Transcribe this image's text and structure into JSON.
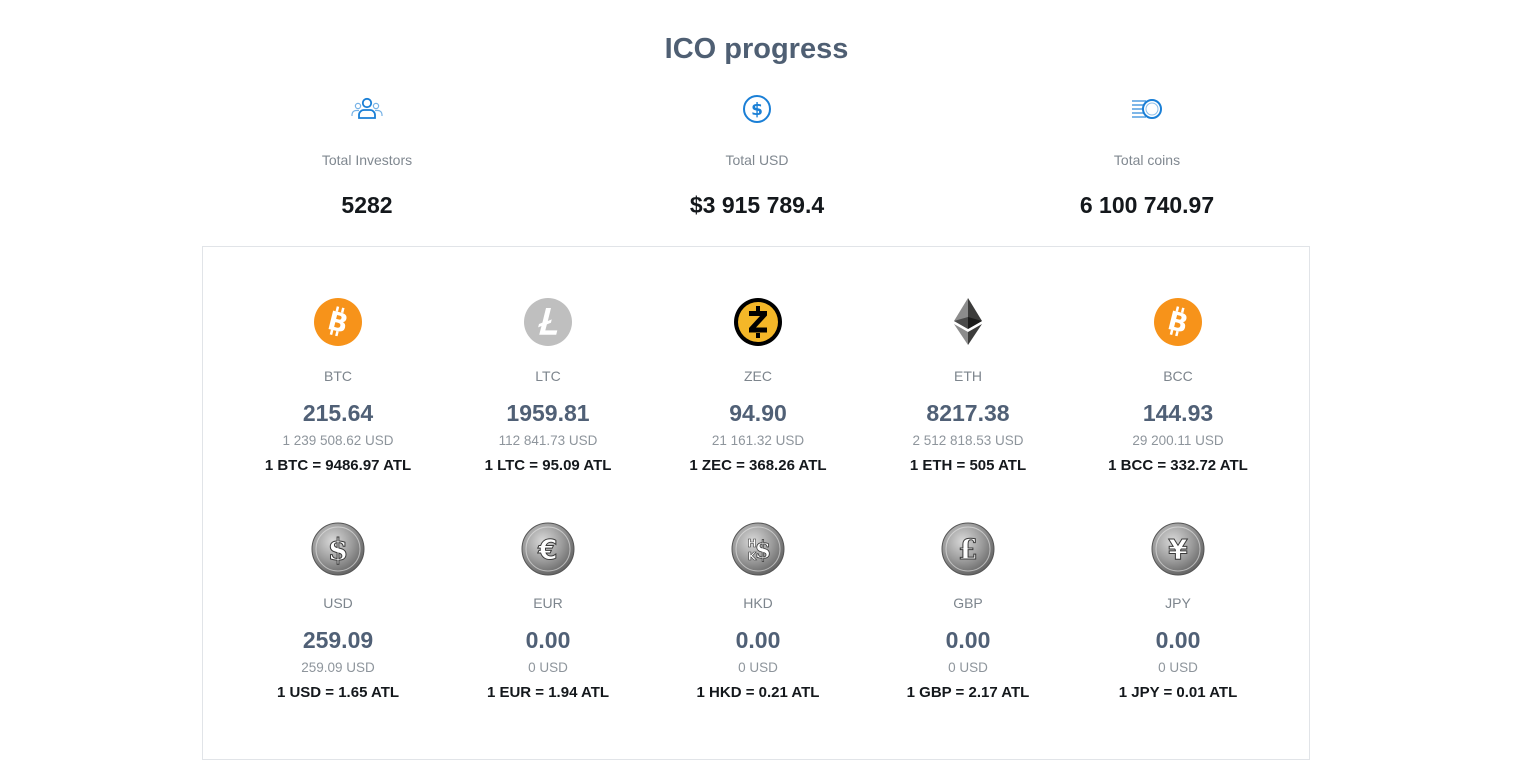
{
  "title": "ICO progress",
  "summary": [
    {
      "icon": "investors-icon",
      "label": "Total Investors",
      "value": "5282"
    },
    {
      "icon": "dollar-circle-icon",
      "label": "Total USD",
      "value": "$3 915 789.4"
    },
    {
      "icon": "coins-icon",
      "label": "Total coins",
      "value": "6 100 740.97"
    }
  ],
  "colors": {
    "accent_blue": "#1a7fd6",
    "btc_orange": "#f7931a",
    "zec_gold": "#f4b728",
    "ltc_gray": "#bfbfbf",
    "title_slate": "#4f5f73",
    "fiat_silver": "#8a8a8a"
  },
  "coins": [
    {
      "icon": "bitcoin-icon",
      "symbol": "BTC",
      "amount": "215.64",
      "usd": "1 239 508.62 USD",
      "rate": "1 BTC = 9486.97 ATL"
    },
    {
      "icon": "litecoin-icon",
      "symbol": "LTC",
      "amount": "1959.81",
      "usd": "112 841.73 USD",
      "rate": "1 LTC = 95.09 ATL"
    },
    {
      "icon": "zcash-icon",
      "symbol": "ZEC",
      "amount": "94.90",
      "usd": "21 161.32 USD",
      "rate": "1 ZEC = 368.26 ATL"
    },
    {
      "icon": "ethereum-icon",
      "symbol": "ETH",
      "amount": "8217.38",
      "usd": "2 512 818.53 USD",
      "rate": "1 ETH = 505 ATL"
    },
    {
      "icon": "bitcoin-cash-icon",
      "symbol": "BCC",
      "amount": "144.93",
      "usd": "29 200.11 USD",
      "rate": "1 BCC = 332.72 ATL"
    },
    {
      "icon": "dollar-coin-icon",
      "symbol": "USD",
      "amount": "259.09",
      "usd": "259.09 USD",
      "rate": "1 USD = 1.65 ATL"
    },
    {
      "icon": "euro-coin-icon",
      "symbol": "EUR",
      "amount": "0.00",
      "usd": "0 USD",
      "rate": "1 EUR = 1.94 ATL"
    },
    {
      "icon": "hkd-coin-icon",
      "symbol": "HKD",
      "amount": "0.00",
      "usd": "0 USD",
      "rate": "1 HKD = 0.21 ATL"
    },
    {
      "icon": "pound-coin-icon",
      "symbol": "GBP",
      "amount": "0.00",
      "usd": "0 USD",
      "rate": "1 GBP = 2.17 ATL"
    },
    {
      "icon": "yen-coin-icon",
      "symbol": "JPY",
      "amount": "0.00",
      "usd": "0 USD",
      "rate": "1 JPY = 0.01 ATL"
    }
  ]
}
